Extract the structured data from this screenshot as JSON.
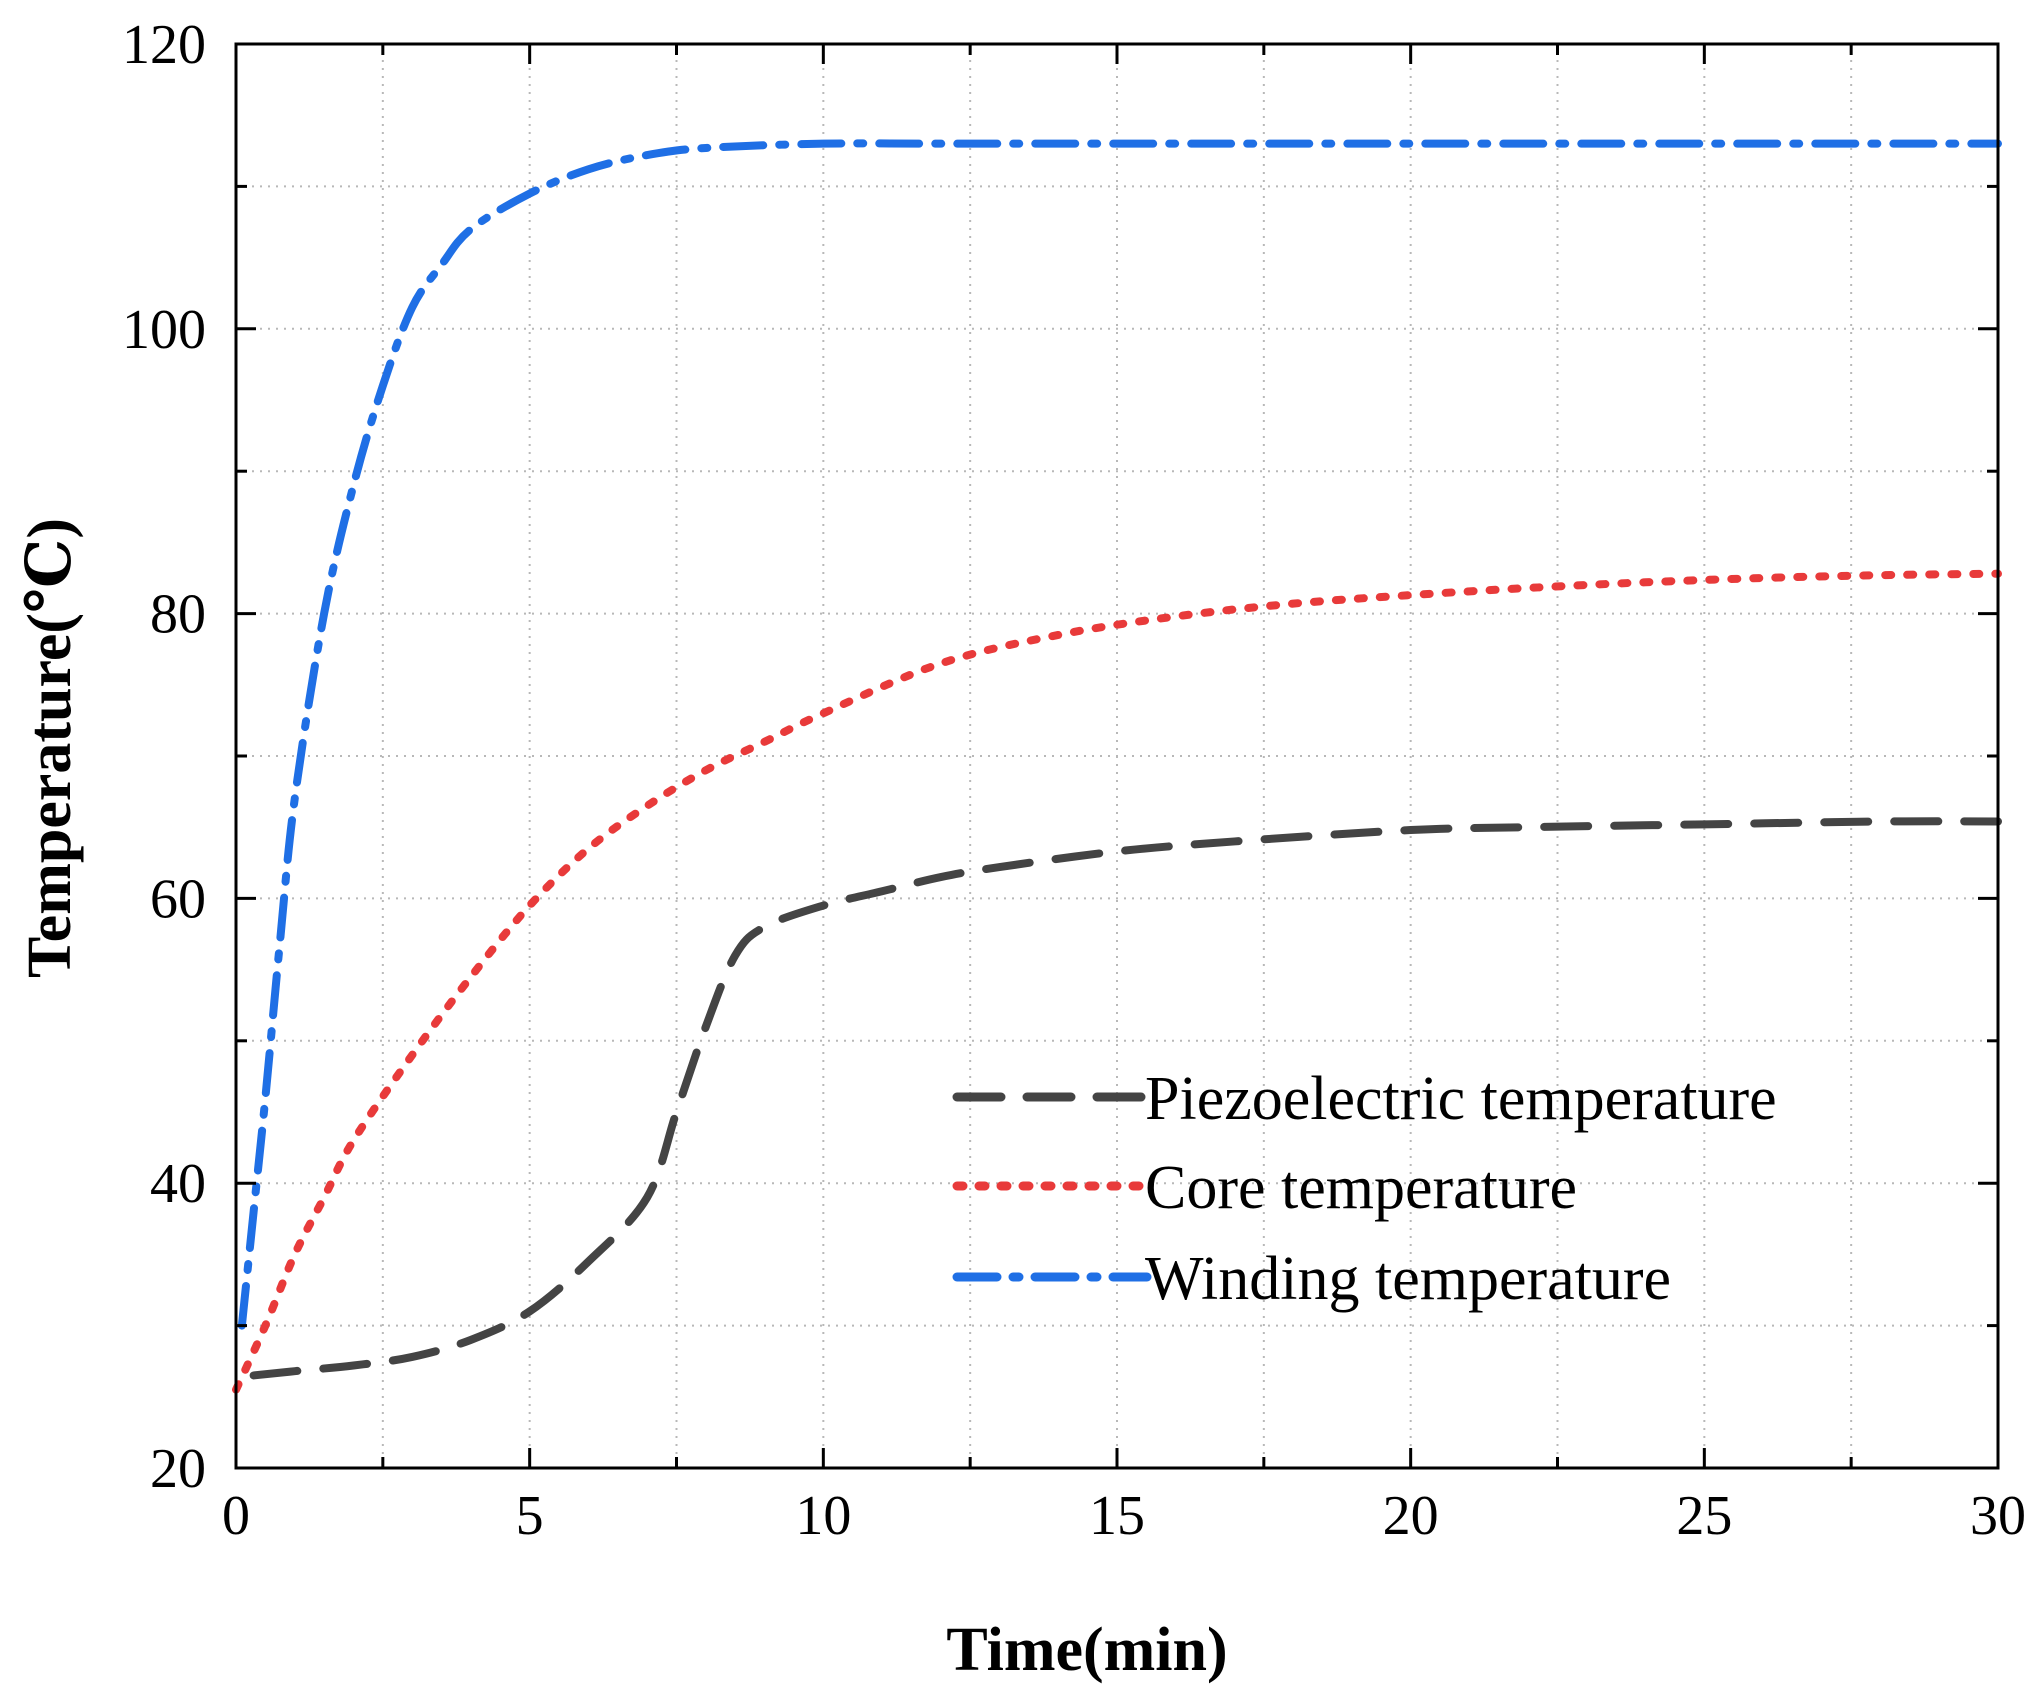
{
  "chart_data": {
    "type": "line",
    "title": "",
    "xlabel": "Time(min)",
    "ylabel": "Temperature(℃)",
    "xlim": [
      0,
      30
    ],
    "ylim": [
      20,
      120
    ],
    "x_ticks": [
      0,
      5,
      10,
      15,
      20,
      25,
      30
    ],
    "y_ticks": [
      20,
      40,
      60,
      80,
      100,
      120
    ],
    "x_minor_step": 2.5,
    "y_minor_step": 10,
    "grid": true,
    "legend_position": "center-right",
    "series": [
      {
        "name": "Piezoelectric temperature",
        "color": "#444444",
        "style": "dash",
        "x": [
          0.3,
          1,
          2,
          3,
          4,
          5,
          6,
          7,
          7.5,
          8,
          8.5,
          9,
          10,
          11,
          12,
          13,
          15,
          17,
          20,
          22,
          25,
          28,
          30
        ],
        "y": [
          26.5,
          26.8,
          27.2,
          27.8,
          29.0,
          31.0,
          34.5,
          39.0,
          45.0,
          51.0,
          56.0,
          58.0,
          59.5,
          60.5,
          61.5,
          62.2,
          63.3,
          64.0,
          64.8,
          65.0,
          65.2,
          65.4,
          65.4
        ]
      },
      {
        "name": "Core temperature",
        "color": "#e83a3a",
        "style": "dot",
        "x": [
          0,
          0.5,
          1,
          1.5,
          2,
          3,
          4,
          5,
          6,
          7,
          8,
          9,
          10,
          12,
          14,
          16,
          18,
          20,
          22,
          24,
          26,
          28,
          30
        ],
        "y": [
          25.5,
          30,
          35,
          39,
          43,
          49,
          54.5,
          59.5,
          63.5,
          66.5,
          69,
          71,
          73,
          76.5,
          78.5,
          79.8,
          80.7,
          81.3,
          81.8,
          82.2,
          82.5,
          82.7,
          82.8
        ]
      },
      {
        "name": "Winding temperature",
        "color": "#1f6fe5",
        "style": "dashdot",
        "x": [
          0.1,
          0.3,
          0.5,
          0.75,
          1,
          1.5,
          2,
          2.5,
          3,
          3.5,
          4,
          5,
          6,
          7,
          8,
          10,
          12,
          15,
          20,
          25,
          30
        ],
        "y": [
          30,
          38,
          46,
          57,
          67,
          80,
          89,
          96,
          101.5,
          104.5,
          107,
          109.5,
          111.2,
          112.2,
          112.7,
          113,
          113,
          113,
          113,
          113,
          113
        ]
      }
    ]
  }
}
